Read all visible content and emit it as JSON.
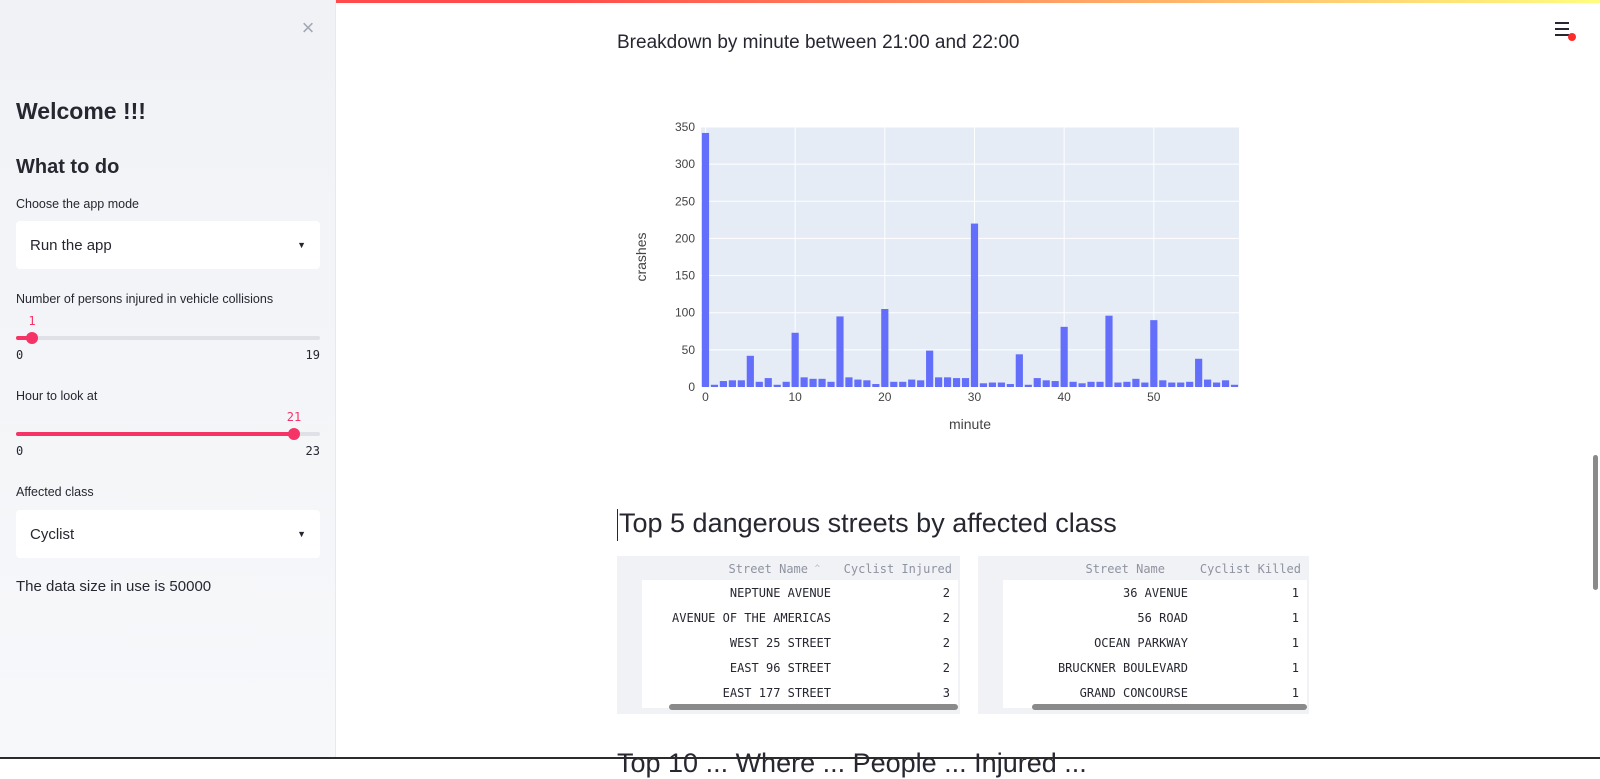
{
  "sidebar": {
    "close_label": "×",
    "welcome": "Welcome !!!",
    "what_to_do": "What to do",
    "app_mode": {
      "label": "Choose the app mode",
      "value": "Run the app"
    },
    "injured": {
      "label": "Number of persons injured in vehicle collisions",
      "value": "1",
      "min": "0",
      "max": "19",
      "fraction": 0.0526
    },
    "hour": {
      "label": "Hour to look at",
      "value": "21",
      "min": "0",
      "max": "23",
      "fraction": 0.913
    },
    "affected_class": {
      "label": "Affected class",
      "value": "Cyclist"
    },
    "data_size": "The data size in use is 50000"
  },
  "header": {
    "menu_icon": "hamburger-icon"
  },
  "main": {
    "minute_title": "Breakdown by minute between 21:00 and 22:00",
    "top5_title": "Top 5 dangerous streets by affected class",
    "next_title_partial": "Top 10 ... Where ... People ... Injured ..."
  },
  "chart_data": {
    "type": "bar",
    "xlabel": "minute",
    "ylabel": "crashes",
    "ylim": [
      0,
      350
    ],
    "xlim": [
      0,
      60
    ],
    "x_ticks": [
      "0",
      "10",
      "20",
      "30",
      "40",
      "50"
    ],
    "y_ticks": [
      "0",
      "50",
      "100",
      "150",
      "200",
      "250",
      "300",
      "350"
    ],
    "x": [
      0,
      1,
      2,
      3,
      4,
      5,
      6,
      7,
      8,
      9,
      10,
      11,
      12,
      13,
      14,
      15,
      16,
      17,
      18,
      19,
      20,
      21,
      22,
      23,
      24,
      25,
      26,
      27,
      28,
      29,
      30,
      31,
      32,
      33,
      34,
      35,
      36,
      37,
      38,
      39,
      40,
      41,
      42,
      43,
      44,
      45,
      46,
      47,
      48,
      49,
      50,
      51,
      52,
      53,
      54,
      55,
      56,
      57,
      58,
      59
    ],
    "values": [
      342,
      3,
      8,
      9,
      9,
      42,
      7,
      12,
      3,
      7,
      73,
      13,
      11,
      11,
      7,
      95,
      13,
      10,
      9,
      4,
      105,
      7,
      7,
      10,
      9,
      49,
      13,
      13,
      12,
      12,
      220,
      5,
      6,
      6,
      4,
      44,
      3,
      12,
      9,
      8,
      81,
      7,
      5,
      7,
      7,
      96,
      6,
      7,
      11,
      6,
      90,
      9,
      6,
      6,
      7,
      38,
      10,
      6,
      9,
      3
    ],
    "bar_color": "#636efa",
    "plot_bg": "#e5ecf6",
    "grid": true
  },
  "table_cyclist_injured": {
    "headers": [
      "Street Name",
      "Cyclist Injured"
    ],
    "sort_indicator": "^",
    "rows": [
      [
        "NEPTUNE AVENUE",
        "2"
      ],
      [
        "AVENUE OF THE AMERICAS",
        "2"
      ],
      [
        "WEST 25 STREET",
        "2"
      ],
      [
        "EAST 96 STREET",
        "2"
      ],
      [
        "EAST 177 STREET",
        "3"
      ]
    ]
  },
  "table_cyclist_killed": {
    "headers": [
      "Street Name",
      "Cyclist Killed"
    ],
    "rows": [
      [
        "36 AVENUE",
        "1"
      ],
      [
        "56 ROAD",
        "1"
      ],
      [
        "OCEAN PARKWAY",
        "1"
      ],
      [
        "BRUCKNER BOULEVARD",
        "1"
      ],
      [
        "GRAND CONCOURSE",
        "1"
      ]
    ]
  },
  "colors": {
    "accent": "#f63366",
    "sidebar_bg": "#f0f2f6"
  }
}
